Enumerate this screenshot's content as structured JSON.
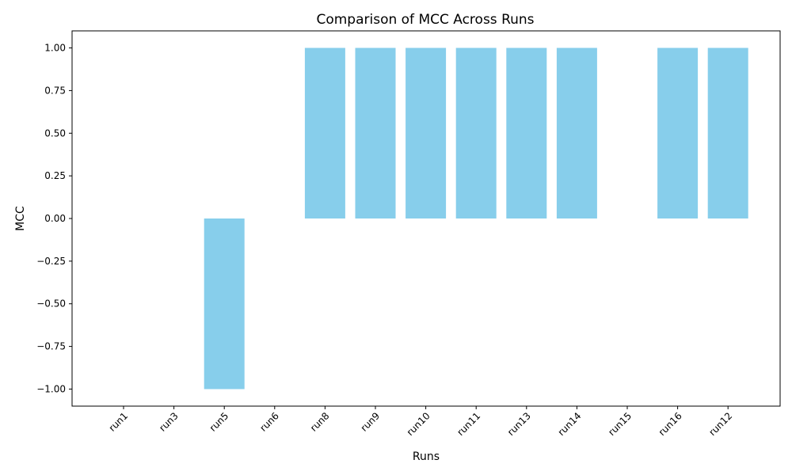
{
  "chart_data": {
    "type": "bar",
    "title": "Comparison of MCC Across Runs",
    "xlabel": "Runs",
    "ylabel": "MCC",
    "categories": [
      "run1",
      "run3",
      "run5",
      "run6",
      "run8",
      "run9",
      "run10",
      "run11",
      "run13",
      "run14",
      "run15",
      "run16",
      "run12"
    ],
    "values": [
      0,
      0,
      -1,
      0,
      1,
      1,
      1,
      1,
      1,
      1,
      0,
      1,
      1
    ],
    "ylim": [
      -1.1,
      1.1
    ],
    "yticks": [
      -1.0,
      -0.75,
      -0.5,
      -0.25,
      0.0,
      0.25,
      0.5,
      0.75,
      1.0
    ],
    "ytick_labels": [
      "−1.00",
      "−0.75",
      "−0.50",
      "−0.25",
      "0.00",
      "0.25",
      "0.50",
      "0.75",
      "1.00"
    ],
    "bar_color": "#87ceeb",
    "grid": false,
    "legend": "none"
  }
}
